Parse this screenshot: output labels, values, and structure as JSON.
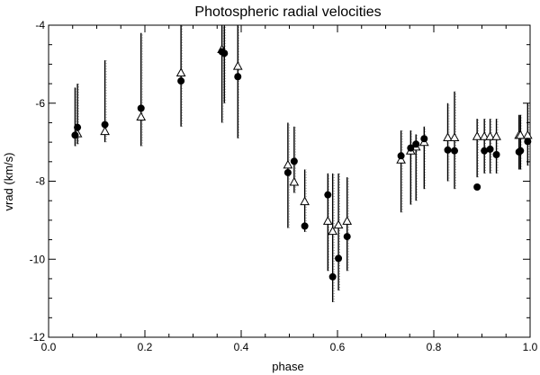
{
  "chart_data": {
    "type": "scatter",
    "title": "Photospheric radial velocities",
    "xlabel": "phase",
    "ylabel": "vrad (km/s)",
    "xlim": [
      0.0,
      1.0
    ],
    "ylim": [
      -12,
      -4
    ],
    "xticks": [
      0.0,
      0.2,
      0.4,
      0.6,
      0.8,
      1.0
    ],
    "xtick_labels": [
      "0.0",
      "0.2",
      "0.4",
      "0.6",
      "0.8",
      "1.0"
    ],
    "yticks": [
      -12,
      -10,
      -8,
      -6,
      -4
    ],
    "ytick_labels": [
      "-12",
      "-10",
      "-8",
      "-6",
      "-4"
    ],
    "grid": false,
    "legend": "none",
    "series": [
      {
        "marker": "filled-circle",
        "x": [
          0.055,
          0.06,
          0.117,
          0.192,
          0.275,
          0.36,
          0.365,
          0.393,
          0.497,
          0.51,
          0.532,
          0.58,
          0.59,
          0.602,
          0.62,
          0.732,
          0.752,
          0.763,
          0.78,
          0.829,
          0.843,
          0.89,
          0.905,
          0.917,
          0.93,
          0.977,
          0.98,
          0.995
        ],
        "y": [
          -6.82,
          -6.62,
          -6.55,
          -6.13,
          -5.43,
          -4.68,
          -4.72,
          -5.32,
          -7.78,
          -7.49,
          -9.15,
          -8.35,
          -10.45,
          -9.98,
          -9.42,
          -7.35,
          -7.15,
          -7.05,
          -6.91,
          -7.2,
          -7.22,
          -8.15,
          -7.22,
          -7.18,
          -7.32,
          -7.25,
          -7.22,
          -6.98
        ]
      },
      {
        "marker": "open-triangle",
        "x": [
          0.06,
          0.117,
          0.192,
          0.275,
          0.36,
          0.393,
          0.497,
          0.51,
          0.532,
          0.58,
          0.59,
          0.602,
          0.62,
          0.732,
          0.752,
          0.763,
          0.78,
          0.829,
          0.843,
          0.89,
          0.905,
          0.917,
          0.93,
          0.977,
          0.98,
          0.995
        ],
        "y": [
          -6.78,
          -6.72,
          -6.35,
          -5.22,
          -4.62,
          -5.05,
          -7.58,
          -8.02,
          -8.52,
          -9.02,
          -9.28,
          -9.12,
          -9.02,
          -7.45,
          -7.22,
          -7.12,
          -7.0,
          -6.88,
          -6.88,
          -6.85,
          -6.85,
          -6.85,
          -6.85,
          -6.82,
          -6.82,
          -6.82
        ]
      },
      {
        "marker": "vertical-scatter",
        "x": [
          0.055,
          0.06,
          0.117,
          0.192,
          0.275,
          0.36,
          0.365,
          0.393,
          0.497,
          0.51,
          0.532,
          0.58,
          0.59,
          0.602,
          0.62,
          0.732,
          0.752,
          0.763,
          0.78,
          0.829,
          0.843,
          0.89,
          0.905,
          0.917,
          0.93,
          0.977,
          0.98,
          0.995
        ],
        "y_low": [
          -7.1,
          -7.05,
          -7.0,
          -7.1,
          -6.6,
          -6.5,
          -6.0,
          -6.9,
          -9.2,
          -8.3,
          -9.3,
          -10.3,
          -11.1,
          -10.8,
          -10.3,
          -8.8,
          -8.6,
          -8.5,
          -8.2,
          -8.0,
          -8.2,
          -7.9,
          -7.8,
          -7.8,
          -7.8,
          -7.7,
          -7.7,
          -7.6
        ],
        "y_high": [
          -5.6,
          -5.5,
          -4.9,
          -4.2,
          -3.9,
          -3.9,
          -3.9,
          -3.9,
          -6.5,
          -6.6,
          -7.7,
          -7.8,
          -7.8,
          -7.8,
          -7.9,
          -6.7,
          -6.7,
          -6.8,
          -6.6,
          -6.0,
          -5.7,
          -6.4,
          -6.4,
          -6.4,
          -6.4,
          -6.3,
          -6.3,
          -6.0
        ]
      }
    ]
  }
}
